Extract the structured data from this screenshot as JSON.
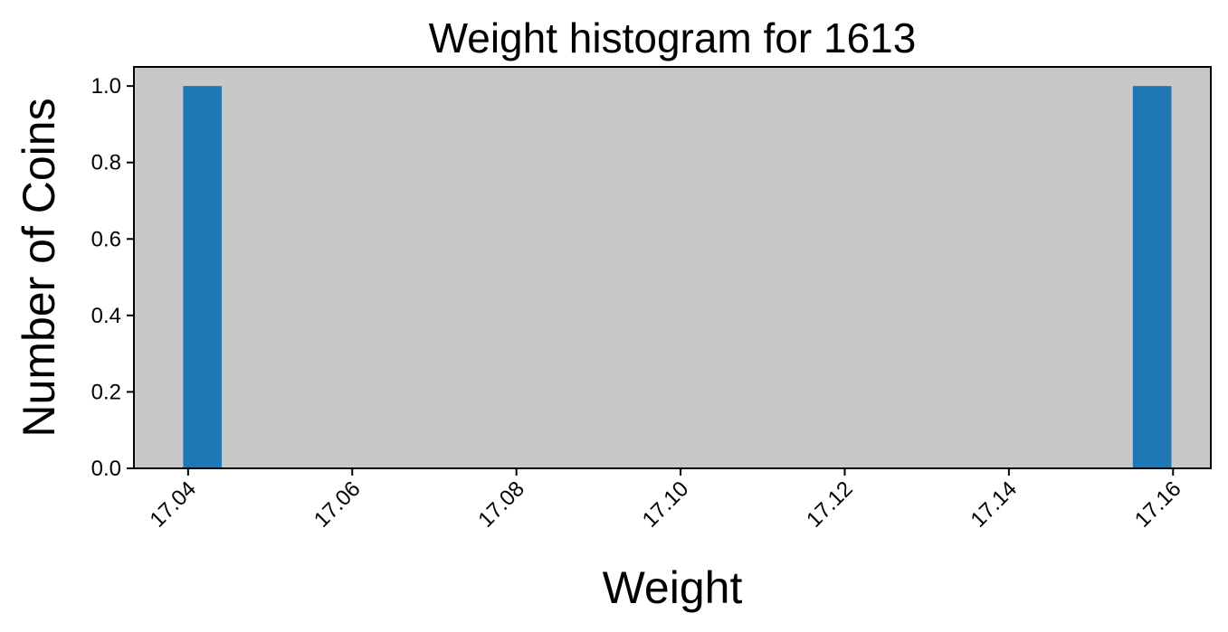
{
  "chart_data": {
    "type": "bar",
    "title": "Weight histogram for 1613",
    "xlabel": "Weight",
    "ylabel": "Number of Coins",
    "xlim": [
      17.0334,
      17.1646
    ],
    "ylim": [
      0,
      1.05
    ],
    "xticks": [
      "17.04",
      "17.06",
      "17.08",
      "17.10",
      "17.12",
      "17.14",
      "17.16"
    ],
    "yticks": [
      "0.0",
      "0.2",
      "0.4",
      "0.6",
      "0.8",
      "1.0"
    ],
    "bars": [
      {
        "x0": 17.0394,
        "x1": 17.0441,
        "value": 1
      },
      {
        "x0": 17.1551,
        "x1": 17.1598,
        "value": 1
      }
    ],
    "colors": {
      "bar": "#1f77b4",
      "plot_background": "#c8c8c8",
      "figure_background": "#ffffff"
    },
    "grid": false,
    "legend": "none"
  }
}
